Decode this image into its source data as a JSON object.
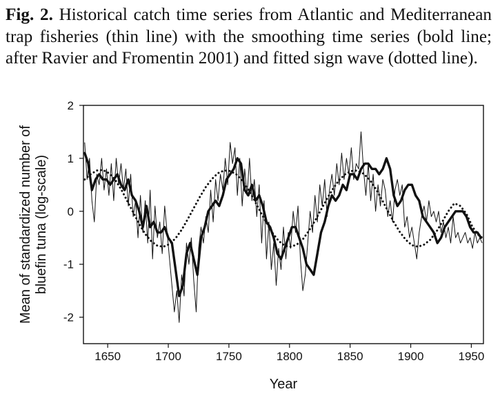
{
  "caption": {
    "figure_label": "Fig. 2.",
    "text": "Historical catch time series from Atlantic and Mediterranean trap fisheries (thin line) with the smoothing time series (bold line; after Ravier and Fromentin 2001) and fitted sign wave (dotted line)."
  },
  "chart_data": {
    "type": "line",
    "xlabel": "Year",
    "ylabel_lines": [
      "Mean of standardized number of",
      "bluefin tuna (log-scale)"
    ],
    "xlim": [
      1630,
      1960
    ],
    "ylim": [
      -2.5,
      2
    ],
    "x_ticks": [
      1650,
      1700,
      1750,
      1800,
      1850,
      1900,
      1950
    ],
    "y_ticks": [
      -2,
      -1,
      0,
      1,
      2
    ],
    "grid": false,
    "series": [
      {
        "style": "thin",
        "x": [
          1631,
          1633,
          1635,
          1637,
          1639,
          1641,
          1643,
          1645,
          1647,
          1649,
          1651,
          1653,
          1655,
          1657,
          1659,
          1661,
          1663,
          1665,
          1667,
          1669,
          1671,
          1673,
          1675,
          1677,
          1679,
          1681,
          1683,
          1685,
          1687,
          1689,
          1691,
          1693,
          1695,
          1697,
          1699,
          1701,
          1703,
          1705,
          1707,
          1709,
          1711,
          1713,
          1715,
          1717,
          1719,
          1721,
          1723,
          1725,
          1727,
          1729,
          1731,
          1733,
          1735,
          1737,
          1739,
          1741,
          1743,
          1745,
          1747,
          1749,
          1751,
          1753,
          1755,
          1757,
          1759,
          1761,
          1763,
          1765,
          1767,
          1769,
          1771,
          1773,
          1775,
          1777,
          1779,
          1781,
          1783,
          1785,
          1787,
          1789,
          1791,
          1793,
          1795,
          1797,
          1799,
          1801,
          1803,
          1805,
          1807,
          1809,
          1811,
          1813,
          1815,
          1817,
          1819,
          1821,
          1823,
          1825,
          1827,
          1829,
          1831,
          1833,
          1835,
          1837,
          1839,
          1841,
          1843,
          1845,
          1847,
          1849,
          1851,
          1853,
          1855,
          1857,
          1859,
          1861,
          1863,
          1865,
          1867,
          1869,
          1871,
          1873,
          1875,
          1877,
          1879,
          1881,
          1883,
          1885,
          1887,
          1889,
          1891,
          1893,
          1895,
          1897,
          1899,
          1901,
          1903,
          1905,
          1907,
          1909,
          1911,
          1913,
          1915,
          1917,
          1919,
          1921,
          1923,
          1925,
          1927,
          1929,
          1931,
          1933,
          1935,
          1937,
          1939,
          1941,
          1943,
          1945,
          1947,
          1949,
          1951,
          1953,
          1955,
          1957,
          1959
        ],
        "y": [
          1.3,
          0.6,
          1.0,
          0.2,
          -0.2,
          0.7,
          0.5,
          1.0,
          0.4,
          0.8,
          0.3,
          0.9,
          0.2,
          1.0,
          0.5,
          0.9,
          0.4,
          0.8,
          0.1,
          0.7,
          -0.1,
          0.2,
          -0.5,
          0.3,
          -0.4,
          0.2,
          -0.6,
          0.4,
          -0.9,
          0.1,
          -0.5,
          -0.2,
          -0.8,
          0.1,
          -0.4,
          -0.9,
          -1.4,
          -1.9,
          -1.5,
          -2.1,
          -1.2,
          -1.6,
          -0.6,
          -1.0,
          -0.5,
          -1.3,
          -1.9,
          -0.7,
          -0.3,
          -0.6,
          -0.1,
          -0.4,
          0.4,
          -0.2,
          0.6,
          0.2,
          0.7,
          0.4,
          1.0,
          0.5,
          1.3,
          0.9,
          1.2,
          0.3,
          1.0,
          0.1,
          0.8,
          0.3,
          1.0,
          0.2,
          0.6,
          -0.1,
          0.5,
          -0.6,
          0.2,
          -0.9,
          -0.2,
          -1.1,
          -0.6,
          -1.4,
          -0.7,
          -1.1,
          -0.3,
          -0.9,
          -0.4,
          -0.7,
          0.0,
          -0.4,
          0.1,
          -0.9,
          -1.5,
          -1.2,
          -0.6,
          0.0,
          -0.4,
          0.3,
          -0.2,
          0.5,
          0.1,
          0.6,
          -0.1,
          0.4,
          0.7,
          0.3,
          0.9,
          0.5,
          1.1,
          0.6,
          1.0,
          0.7,
          1.2,
          0.6,
          0.9,
          0.8,
          1.5,
          0.8,
          0.3,
          0.9,
          0.2,
          0.7,
          0.0,
          0.5,
          0.1,
          0.6,
          0.4,
          -0.1,
          0.2,
          -0.2,
          0.4,
          0.6,
          0.3,
          0.5,
          -0.3,
          -0.1,
          -0.5,
          -0.3,
          -0.6,
          -0.9,
          -0.4,
          -0.1,
          0.1,
          -0.2,
          0.2,
          -0.1,
          0.0,
          -0.2,
          0.0,
          -0.4,
          -0.2,
          -0.5,
          -0.3,
          -0.6,
          -0.1,
          -0.5,
          -0.4,
          -0.6,
          -0.5,
          -0.4,
          -0.6,
          -0.5,
          -0.7,
          -0.4,
          -0.6,
          -0.5,
          -0.6
        ]
      },
      {
        "style": "bold",
        "x": [
          1631,
          1634,
          1637,
          1640,
          1643,
          1646,
          1649,
          1652,
          1655,
          1658,
          1661,
          1664,
          1667,
          1670,
          1673,
          1676,
          1679,
          1682,
          1685,
          1688,
          1691,
          1694,
          1697,
          1700,
          1703,
          1706,
          1709,
          1712,
          1715,
          1718,
          1721,
          1724,
          1727,
          1730,
          1733,
          1736,
          1739,
          1742,
          1745,
          1748,
          1751,
          1754,
          1757,
          1760,
          1763,
          1766,
          1769,
          1772,
          1775,
          1778,
          1781,
          1784,
          1787,
          1790,
          1793,
          1796,
          1799,
          1802,
          1805,
          1808,
          1811,
          1814,
          1817,
          1820,
          1823,
          1826,
          1829,
          1832,
          1835,
          1838,
          1841,
          1844,
          1847,
          1850,
          1853,
          1856,
          1859,
          1862,
          1865,
          1868,
          1871,
          1874,
          1877,
          1880,
          1883,
          1886,
          1889,
          1892,
          1895,
          1898,
          1901,
          1904,
          1907,
          1910,
          1913,
          1916,
          1919,
          1922,
          1925,
          1928,
          1931,
          1934,
          1937,
          1940,
          1943,
          1946,
          1949,
          1952,
          1955,
          1958
        ],
        "y": [
          1.1,
          0.9,
          0.4,
          0.6,
          0.7,
          0.6,
          0.6,
          0.5,
          0.6,
          0.7,
          0.5,
          0.4,
          0.6,
          0.3,
          0.2,
          0.0,
          -0.3,
          0.1,
          -0.3,
          -0.2,
          -0.4,
          -0.4,
          -0.3,
          -0.5,
          -0.6,
          -1.1,
          -1.6,
          -1.4,
          -0.8,
          -0.6,
          -0.9,
          -1.2,
          -0.5,
          -0.3,
          0.0,
          0.1,
          0.2,
          0.1,
          0.3,
          0.6,
          0.7,
          0.8,
          1.0,
          0.9,
          0.4,
          0.3,
          0.5,
          0.2,
          0.3,
          0.1,
          -0.2,
          -0.3,
          -0.5,
          -0.8,
          -0.9,
          -0.7,
          -0.5,
          -0.3,
          -0.3,
          -0.5,
          -0.7,
          -1.0,
          -1.1,
          -1.2,
          -0.8,
          -0.4,
          -0.2,
          0.1,
          0.3,
          0.2,
          0.3,
          0.5,
          0.4,
          0.7,
          0.7,
          0.6,
          0.8,
          0.9,
          0.9,
          0.8,
          0.8,
          0.7,
          0.8,
          1.0,
          0.8,
          0.3,
          0.1,
          0.2,
          0.4,
          0.5,
          0.5,
          0.3,
          0.2,
          -0.1,
          -0.2,
          -0.3,
          -0.4,
          -0.6,
          -0.5,
          -0.3,
          -0.2,
          -0.1,
          0.0,
          0.0,
          0.0,
          -0.1,
          -0.3,
          -0.4,
          -0.4,
          -0.5
        ]
      },
      {
        "style": "dotted",
        "x": [
          1631,
          1636,
          1641,
          1646,
          1651,
          1656,
          1661,
          1666,
          1671,
          1676,
          1681,
          1686,
          1691,
          1696,
          1701,
          1706,
          1711,
          1716,
          1721,
          1726,
          1731,
          1736,
          1741,
          1746,
          1751,
          1756,
          1761,
          1766,
          1771,
          1776,
          1781,
          1786,
          1791,
          1796,
          1801,
          1806,
          1811,
          1816,
          1821,
          1826,
          1831,
          1836,
          1841,
          1846,
          1851,
          1856,
          1861,
          1866,
          1871,
          1876,
          1881,
          1886,
          1891,
          1896,
          1901,
          1906,
          1911,
          1916,
          1921,
          1926,
          1931,
          1936,
          1941,
          1946,
          1951,
          1956,
          1959
        ],
        "y": [
          0.6,
          0.7,
          0.77,
          0.78,
          0.72,
          0.6,
          0.42,
          0.2,
          -0.02,
          -0.24,
          -0.43,
          -0.57,
          -0.65,
          -0.67,
          -0.62,
          -0.51,
          -0.35,
          -0.15,
          0.06,
          0.27,
          0.46,
          0.61,
          0.72,
          0.77,
          0.76,
          0.7,
          0.58,
          0.41,
          0.21,
          -0.01,
          -0.22,
          -0.41,
          -0.56,
          -0.65,
          -0.67,
          -0.63,
          -0.53,
          -0.37,
          -0.18,
          0.03,
          0.24,
          0.43,
          0.59,
          0.7,
          0.76,
          0.77,
          0.71,
          0.6,
          0.43,
          0.23,
          0.01,
          -0.2,
          -0.39,
          -0.54,
          -0.64,
          -0.67,
          -0.63,
          -0.54,
          -0.39,
          -0.2,
          0.0,
          0.15,
          0.1,
          -0.05,
          -0.3,
          -0.45,
          -0.5
        ]
      }
    ]
  }
}
